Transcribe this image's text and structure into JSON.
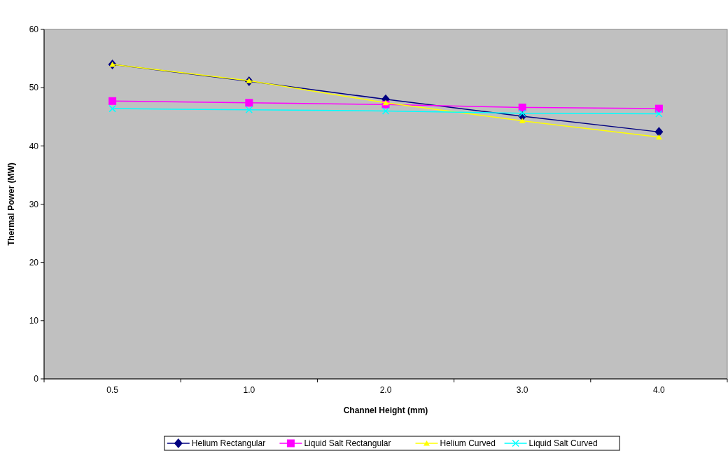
{
  "chart_data": {
    "type": "line",
    "xlabel": "Channel Height (mm)",
    "ylabel": "Thermal Power (MW)",
    "categories": [
      "0.5",
      "1.0",
      "2.0",
      "3.0",
      "4.0"
    ],
    "ylim": [
      0,
      60
    ],
    "yticks": [
      0,
      10,
      20,
      30,
      40,
      50,
      60
    ],
    "legend": "bottom",
    "grid": false,
    "series": [
      {
        "name": "Helium Rectangular",
        "color": "#000080",
        "marker": "diamond",
        "values": [
          54,
          51.1,
          48,
          45.1,
          42.4
        ]
      },
      {
        "name": "Liquid Salt Rectangular",
        "color": "#ff00ff",
        "marker": "square",
        "values": [
          47.7,
          47.4,
          47.1,
          46.6,
          46.4
        ]
      },
      {
        "name": "Helium Curved",
        "color": "#ffff00",
        "marker": "triangle",
        "values": [
          54,
          51.2,
          47.4,
          44.3,
          41.5
        ]
      },
      {
        "name": "Liquid Salt Curved",
        "color": "#00ffff",
        "marker": "cross",
        "values": [
          46.4,
          46.2,
          46,
          45.6,
          45.5
        ]
      }
    ]
  }
}
